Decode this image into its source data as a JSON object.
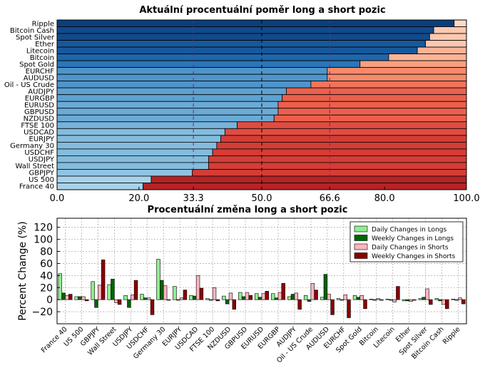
{
  "chart_data": [
    {
      "type": "bar",
      "orientation": "horizontal",
      "stacked": true,
      "title": "Aktuální procentuální poměr long a short pozic",
      "categories": [
        "Ripple",
        "Bitcoin Cash",
        "Spot Silver",
        "Ether",
        "Litecoin",
        "Bitcoin",
        "Spot Gold",
        "EURCHF",
        "AUDUSD",
        "Oil - US Crude",
        "AUDJPY",
        "EURGBP",
        "EURUSD",
        "GBPUSD",
        "NZDUSD",
        "FTSE 100",
        "USDCAD",
        "EURJPY",
        "Germany 30",
        "USDCHF",
        "USDJPY",
        "Wall Street",
        "GBPJPY",
        "US 500",
        "France 40"
      ],
      "series": [
        {
          "values": [
            97,
            92,
            91,
            90,
            88,
            81,
            74,
            66,
            66,
            62,
            56,
            55,
            54,
            54,
            53,
            44,
            41,
            40,
            39,
            38,
            37,
            37,
            33,
            23,
            21
          ]
        },
        {
          "values": [
            3,
            8,
            9,
            10,
            12,
            19,
            26,
            34,
            34,
            38,
            44,
            45,
            46,
            46,
            47,
            56,
            59,
            60,
            61,
            62,
            63,
            63,
            67,
            77,
            79
          ]
        }
      ],
      "xlim": [
        0,
        100
      ],
      "xticks": [
        "0.0",
        "20.0",
        "33.3",
        "50.0",
        "66.6",
        "80.0",
        "100.0"
      ],
      "xtick_values": [
        0,
        20,
        33.3,
        50,
        66.6,
        80,
        100
      ],
      "highlight_ticks": [
        "33.3",
        "66.6"
      ],
      "highlight_color": "#7b1f85",
      "grid": "vertical dashed lines at 33.3, 50, 66.6"
    },
    {
      "type": "bar",
      "title": "Procentuální změna long a short pozic",
      "ylabel": "Percent Change (%)",
      "ylim": [
        -40,
        135
      ],
      "yticks": [
        "120",
        "100",
        "80",
        "60",
        "40",
        "20",
        "0",
        "−20"
      ],
      "ytick_values": [
        120,
        100,
        80,
        60,
        40,
        20,
        0,
        -20
      ],
      "grid": true,
      "legend": "top-right",
      "categories": [
        "France 40",
        "US 500",
        "GBPJPY",
        "Wall Street",
        "USDJPY",
        "USDCHF",
        "Germany 30",
        "EURJPY",
        "USDCAD",
        "FTSE 100",
        "NZDUSD",
        "GBPUSD",
        "EURUSD",
        "EURGBP",
        "AUDJPY",
        "Oil - US Crude",
        "AUDUSD",
        "EURCHF",
        "Spot Gold",
        "Bitcoin",
        "Litecoin",
        "Ether",
        "Spot Silver",
        "Bitcoin Cash",
        "Ripple"
      ],
      "series": [
        {
          "name": "Daily Changes in Longs",
          "color": "#90ee90",
          "values": [
            43,
            5,
            30,
            25,
            7,
            9,
            67,
            22,
            7,
            2,
            6,
            12,
            10,
            10,
            5,
            7,
            4,
            2,
            7,
            1,
            1,
            -2,
            2,
            2,
            1
          ]
        },
        {
          "name": "Weekly Changes in Longs",
          "color": "#006400",
          "values": [
            11,
            5,
            -13,
            34,
            -13,
            3,
            32,
            0,
            6,
            -1,
            -7,
            5,
            4,
            3,
            9,
            -3,
            42,
            -1,
            4,
            -1,
            -1,
            -2,
            4,
            -2,
            -1
          ]
        },
        {
          "name": "Daily Changes in Shorts",
          "color": "#ffb6c1",
          "values": [
            7,
            5,
            24,
            -5,
            8,
            3,
            23,
            3,
            40,
            20,
            11,
            12,
            10,
            12,
            11,
            27,
            9,
            8,
            7,
            2,
            -4,
            -3,
            18,
            -8,
            3
          ]
        },
        {
          "name": "Weekly Changes in Shorts",
          "color": "#8b0000",
          "values": [
            9,
            -2,
            66,
            -8,
            32,
            -25,
            -1,
            16,
            19,
            -2,
            -16,
            7,
            14,
            27,
            -16,
            16,
            -25,
            -30,
            -15,
            -1,
            22,
            -1,
            -8,
            -15,
            -7
          ]
        }
      ]
    }
  ]
}
